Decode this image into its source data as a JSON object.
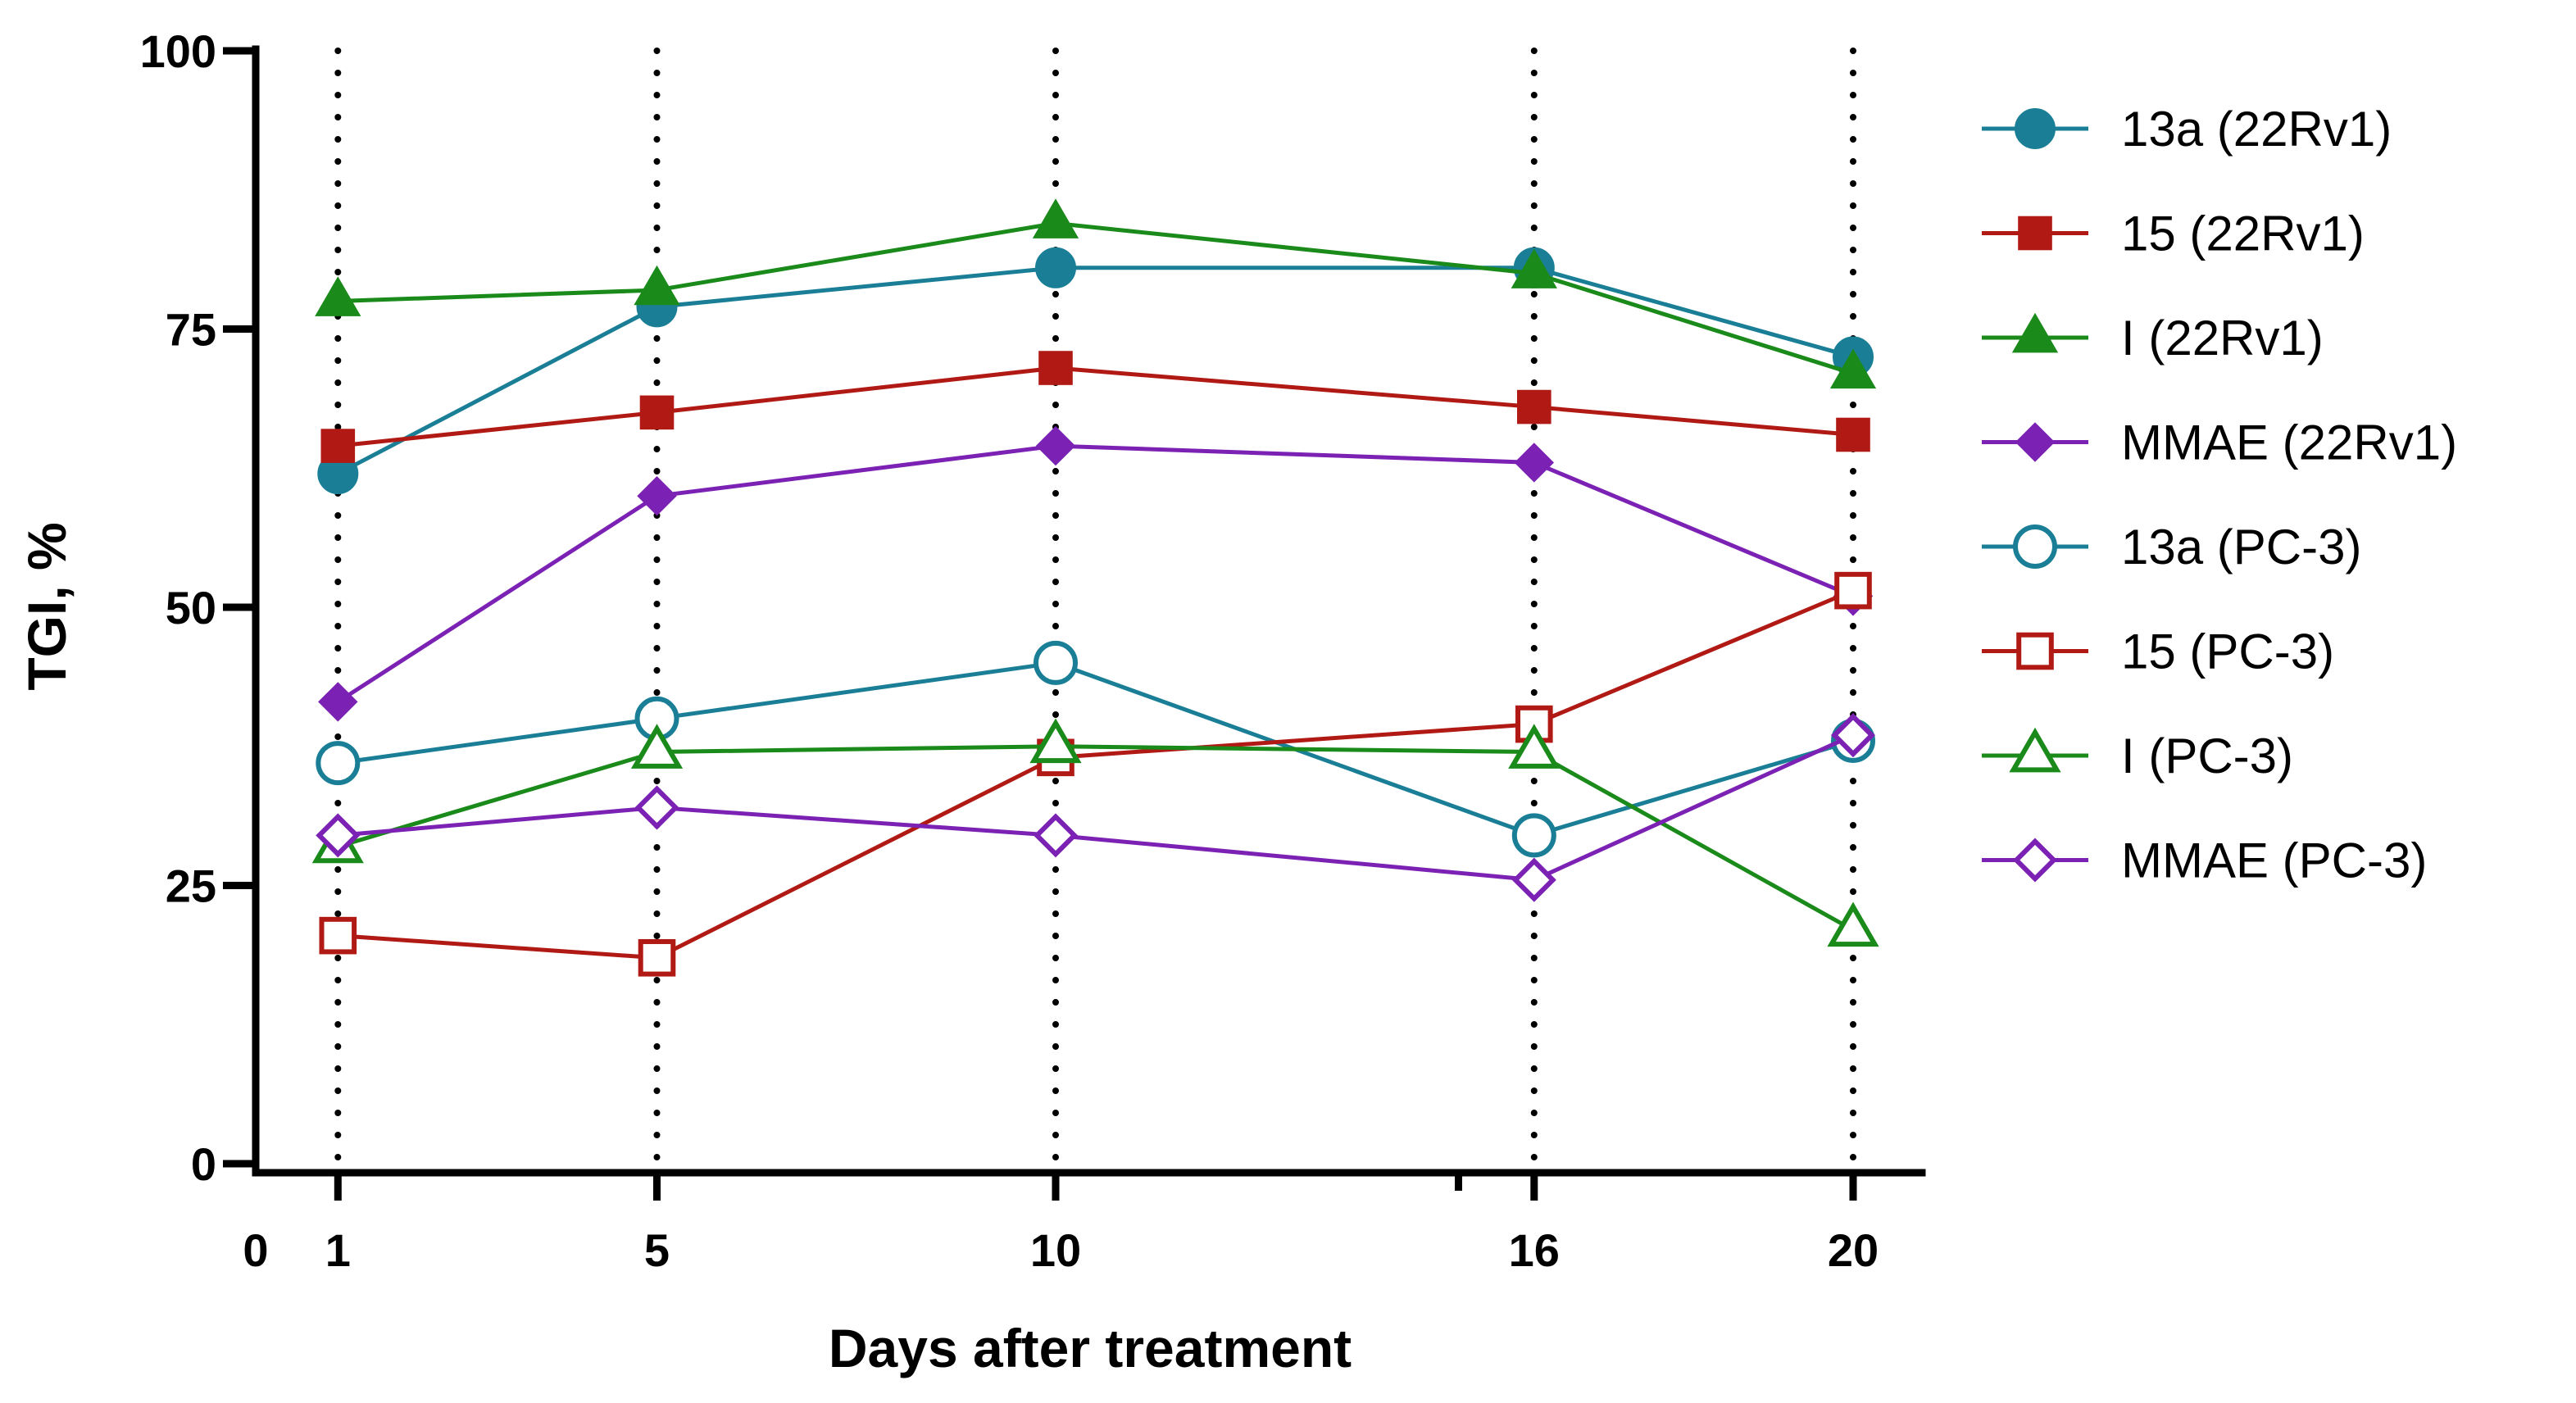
{
  "chart_data": {
    "type": "line",
    "title": "",
    "xlabel": "Days after treatment",
    "ylabel": "TGI, %",
    "xlim": [
      0,
      21
    ],
    "ylim": [
      0,
      100
    ],
    "x_ticks": [
      0,
      1,
      5,
      10,
      16,
      20
    ],
    "x_tick_labels": [
      "0",
      "1",
      "5",
      "10",
      "16",
      "20"
    ],
    "x_minor_ticks": [
      15
    ],
    "y_ticks": [
      0,
      25,
      50,
      75,
      100
    ],
    "y_tick_labels": [
      "0",
      "25",
      "50",
      "75",
      "100"
    ],
    "dotted_reference_lines_x": [
      1,
      5,
      10,
      16,
      20
    ],
    "x": [
      1,
      5,
      10,
      16,
      20
    ],
    "legend_position": "right",
    "series": [
      {
        "name": "13a (22Rv1)",
        "values": [
          62,
          77,
          80.5,
          80.5,
          72.5
        ],
        "color": "#1a7f96",
        "marker": "circle",
        "filled": true
      },
      {
        "name": "15 (22Rv1)",
        "values": [
          64.5,
          67.5,
          71.5,
          68,
          65.5
        ],
        "color": "#b11a14",
        "marker": "square",
        "filled": true
      },
      {
        "name": "I (22Rv1)",
        "values": [
          77.5,
          78.5,
          84.5,
          80,
          71
        ],
        "color": "#1a8a1a",
        "marker": "triangle",
        "filled": true
      },
      {
        "name": "MMAE (22Rv1)",
        "values": [
          41.5,
          60,
          64.5,
          63,
          51
        ],
        "color": "#7b22b4",
        "marker": "diamond",
        "filled": true
      },
      {
        "name": "13a (PC-3)",
        "values": [
          36,
          40,
          45,
          29.5,
          38
        ],
        "color": "#1a7f96",
        "marker": "circle",
        "filled": false
      },
      {
        "name": "15 (PC-3)",
        "values": [
          20.5,
          18.5,
          36.5,
          39.5,
          51.5
        ],
        "color": "#b11a14",
        "marker": "square",
        "filled": false
      },
      {
        "name": "I (PC-3)",
        "values": [
          28.5,
          37,
          37.5,
          37,
          21
        ],
        "color": "#1a8a1a",
        "marker": "triangle",
        "filled": false
      },
      {
        "name": "MMAE (PC-3)",
        "values": [
          29.5,
          32,
          29.5,
          25.5,
          38.5
        ],
        "color": "#7b22b4",
        "marker": "diamond",
        "filled": false
      }
    ]
  }
}
